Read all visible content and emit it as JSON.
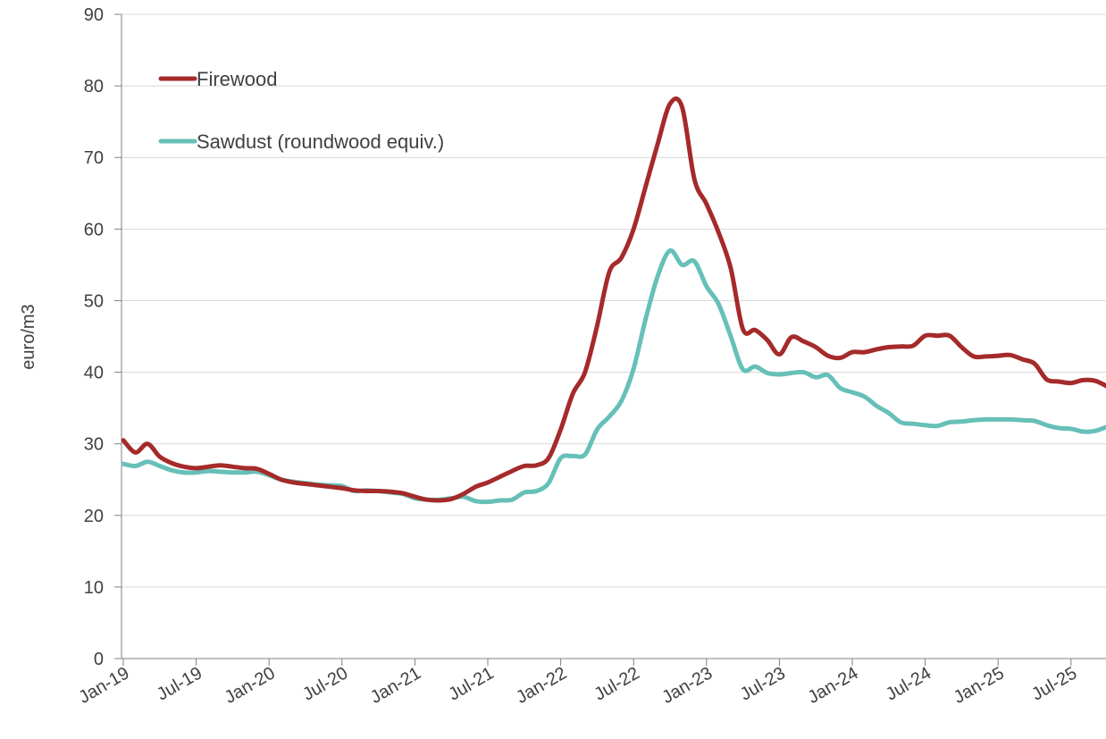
{
  "chart_data": {
    "type": "line",
    "title": "",
    "xlabel": "",
    "ylabel": "euro/m3",
    "ylim": [
      0,
      90
    ],
    "y_ticks": [
      "0",
      "10",
      "20",
      "30",
      "40",
      "50",
      "60",
      "70",
      "80",
      "90"
    ],
    "x_ticks": [
      "Jan-19",
      "Jul-19",
      "Jan-20",
      "Jul-20",
      "Jan-21",
      "Jul-21",
      "Jan-22",
      "Jul-22",
      "Jan-23",
      "Jul-23",
      "Jan-24",
      "Jul-24",
      "Jan-25",
      "Jul-25"
    ],
    "x_start": "Jan-19",
    "x_end": "Oct-25",
    "grid": "horizontal",
    "legend_position": "top-left",
    "series": [
      {
        "name": "Firewood",
        "color": "#a52a2a",
        "values": [
          30.5,
          28.8,
          30.0,
          28.2,
          27.3,
          26.8,
          26.6,
          26.8,
          27.0,
          26.8,
          26.6,
          26.5,
          25.8,
          25.0,
          24.6,
          24.4,
          24.2,
          24.0,
          23.8,
          23.5,
          23.4,
          23.4,
          23.3,
          23.1,
          22.6,
          22.2,
          22.1,
          22.3,
          23.0,
          24.0,
          24.6,
          25.4,
          26.2,
          26.9,
          27.0,
          28.0,
          32.0,
          37.0,
          40.0,
          46.5,
          54.0,
          56.0,
          60.0,
          66.0,
          72.0,
          77.5,
          77.0,
          67.0,
          63.5,
          59.5,
          54.5,
          46.0,
          45.9,
          44.5,
          42.5,
          44.9,
          44.3,
          43.5,
          42.3,
          42.0,
          42.8,
          42.8,
          43.2,
          43.5,
          43.6,
          43.7,
          45.1,
          45.1,
          45.1,
          43.5,
          42.2,
          42.2,
          42.3,
          42.4,
          41.8,
          41.2,
          39.0,
          38.7,
          38.5,
          38.9,
          38.8,
          38.0
        ]
      },
      {
        "name": "Sawdust (roundwood equiv.)",
        "color": "#66c0b8",
        "values": [
          27.2,
          26.9,
          27.5,
          26.9,
          26.3,
          26.0,
          26.0,
          26.2,
          26.1,
          26.0,
          26.0,
          26.1,
          25.6,
          25.0,
          24.7,
          24.5,
          24.3,
          24.2,
          24.1,
          23.4,
          23.5,
          23.4,
          23.2,
          23.0,
          22.4,
          22.2,
          22.2,
          22.4,
          22.6,
          22.0,
          21.9,
          22.1,
          22.2,
          23.2,
          23.4,
          24.5,
          28.0,
          28.3,
          28.5,
          32.0,
          33.8,
          36.0,
          40.5,
          47.5,
          53.5,
          57.0,
          55.0,
          55.5,
          52.0,
          49.5,
          45.0,
          40.4,
          40.8,
          39.9,
          39.7,
          39.9,
          40.0,
          39.3,
          39.6,
          37.8,
          37.2,
          36.6,
          35.3,
          34.3,
          33.0,
          32.8,
          32.6,
          32.5,
          33.0,
          33.1,
          33.3,
          33.4,
          33.4,
          33.4,
          33.3,
          33.2,
          32.6,
          32.2,
          32.1,
          31.7,
          31.8,
          32.4
        ]
      }
    ]
  }
}
